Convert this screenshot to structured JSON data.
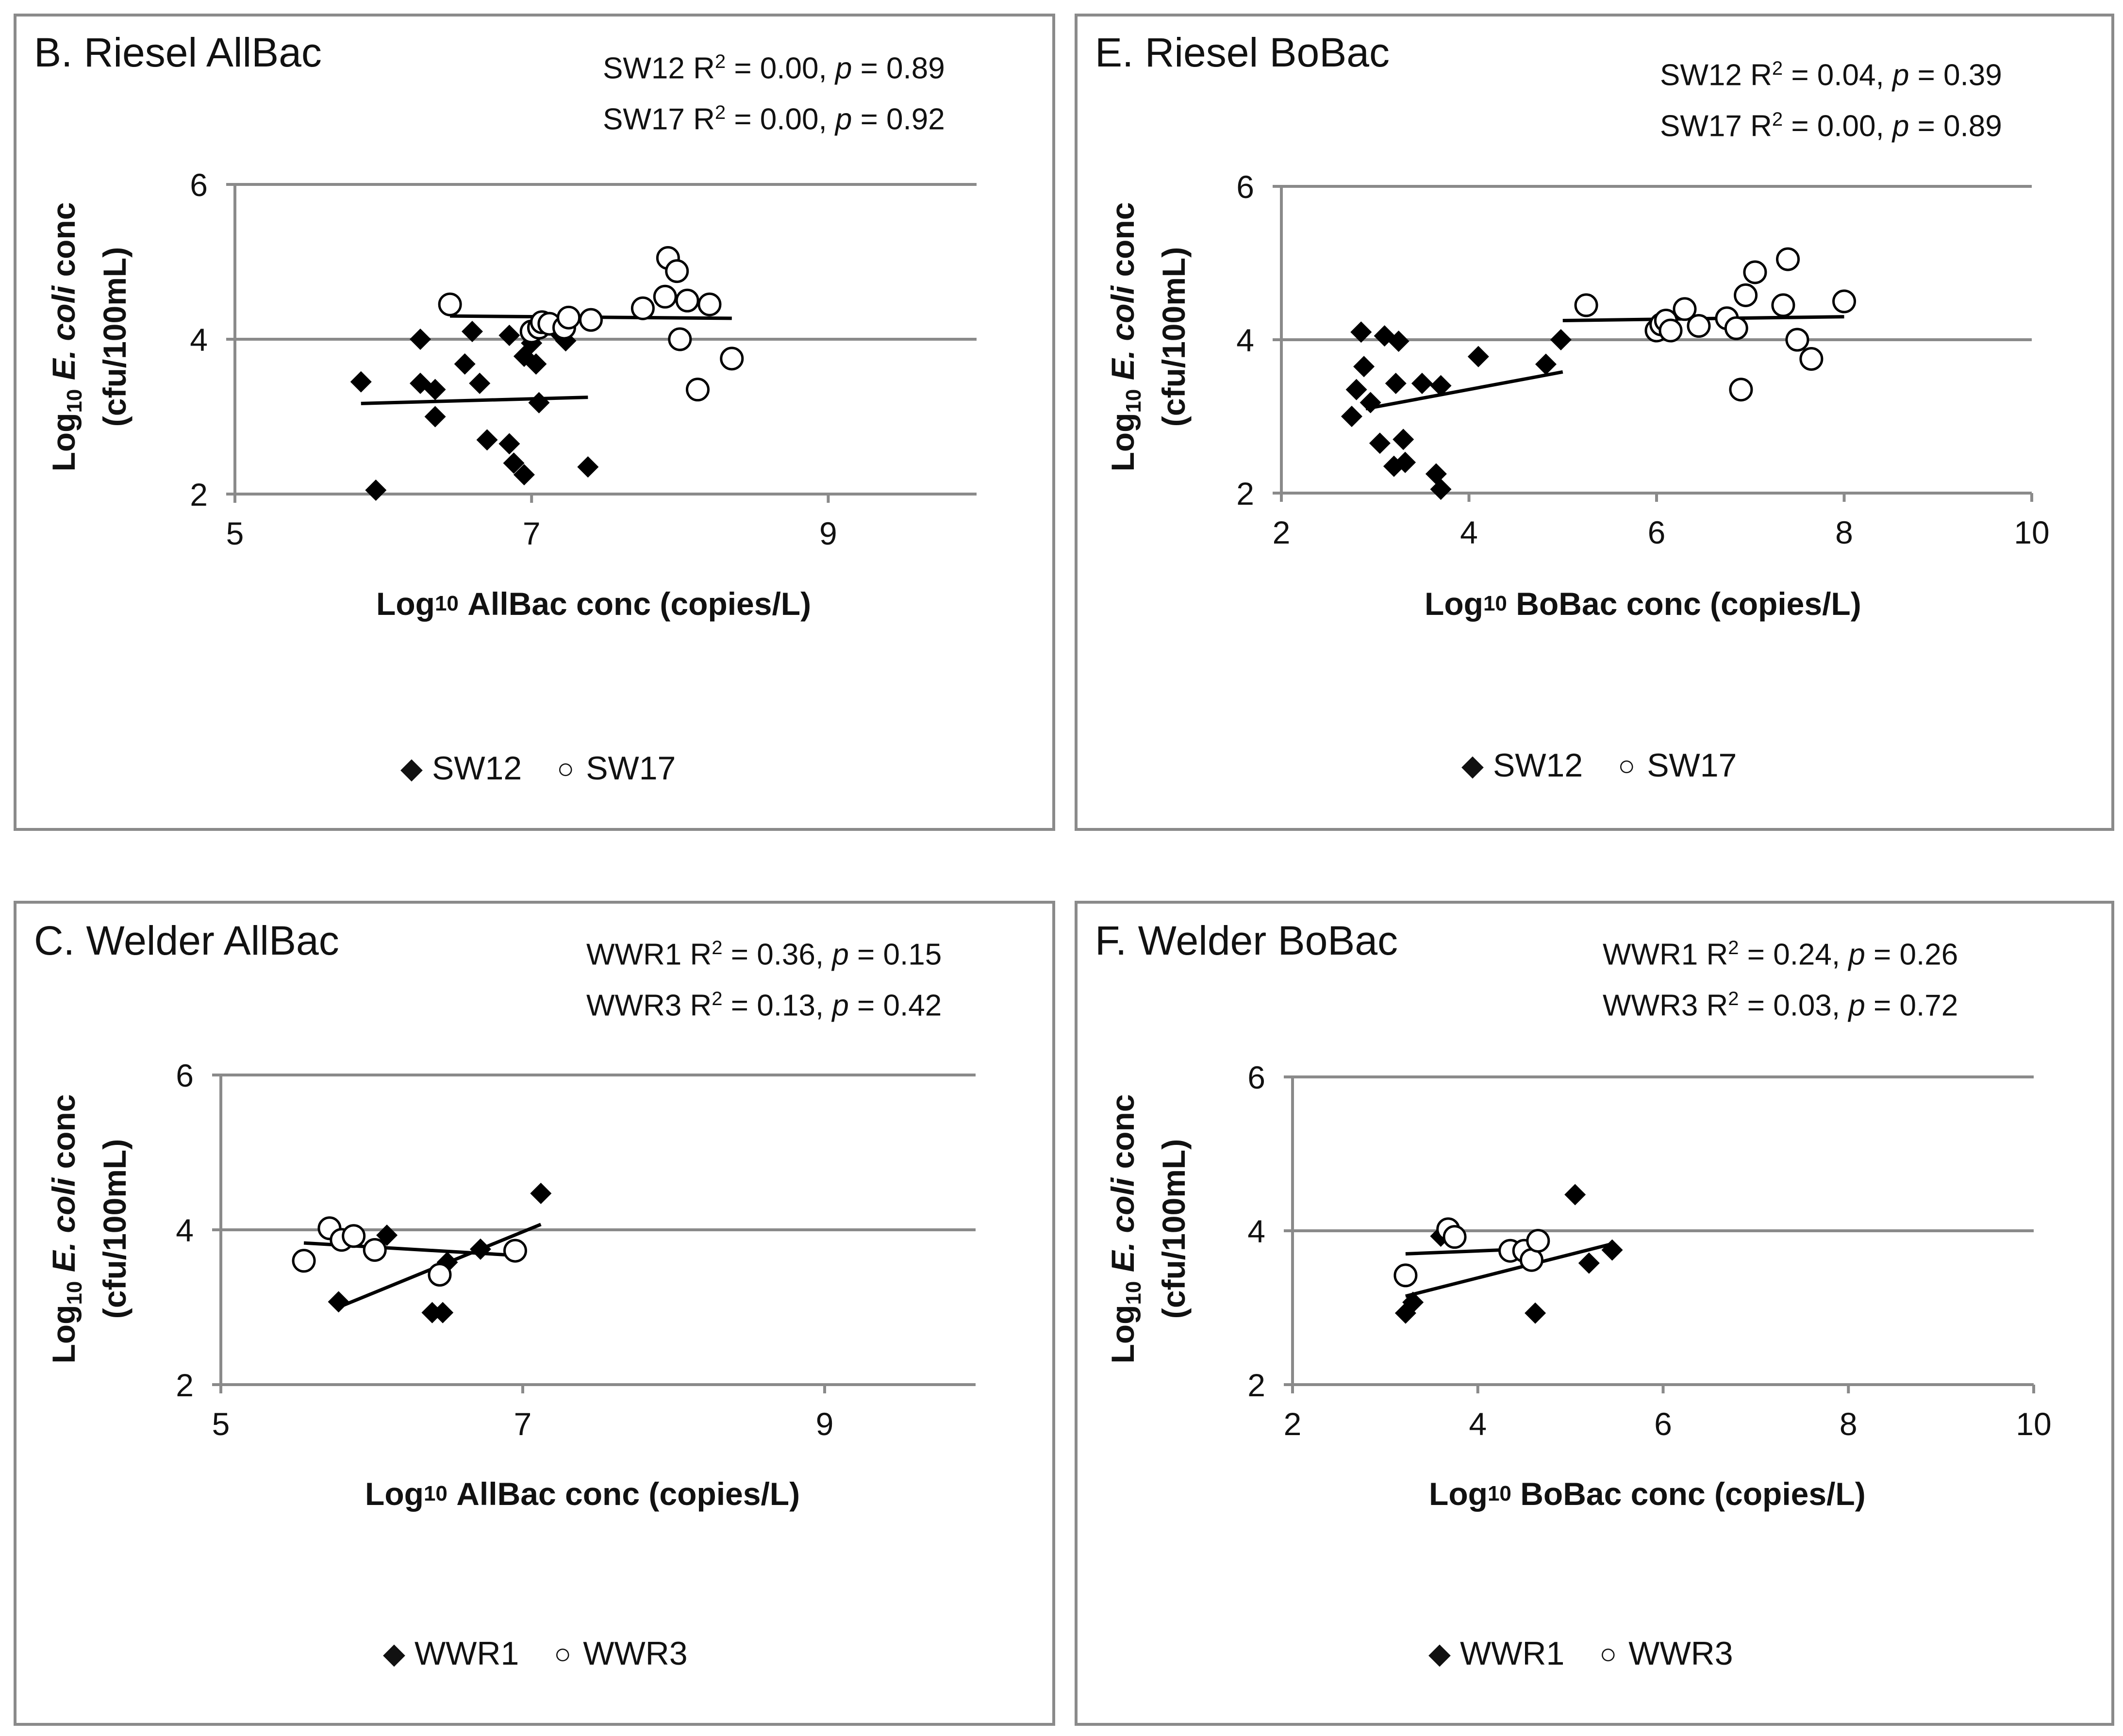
{
  "panels": [
    {
      "id": "B",
      "title": "B. Riesel AllBac",
      "stats": [
        {
          "series": "SW12",
          "r2": "0.00",
          "p": "0.89"
        },
        {
          "series": "SW17",
          "r2": "0.00",
          "p": "0.92"
        }
      ],
      "ylabel_line1_pre": "Log",
      "ylabel_line1_sub": "10",
      "ylabel_line1_it": "E. coli",
      "ylabel_line1_post": "conc",
      "ylabel_line2": "(cfu/100mL)",
      "xlabel_pre": "Log",
      "xlabel_sub": "10",
      "xlabel_post": "AllBac conc (copies/L)",
      "legend": [
        "SW12",
        "SW17"
      ]
    },
    {
      "id": "E",
      "title": "E. Riesel BoBac",
      "stats": [
        {
          "series": "SW12",
          "r2": "0.04",
          "p": "0.39"
        },
        {
          "series": "SW17",
          "r2": "0.00",
          "p": "0.89"
        }
      ],
      "ylabel_line1_pre": "Log",
      "ylabel_line1_sub": "10",
      "ylabel_line1_it": "E. coli",
      "ylabel_line1_post": "conc",
      "ylabel_line2": "(cfu/100mL)",
      "xlabel_pre": "Log",
      "xlabel_sub": "10",
      "xlabel_post": "BoBac conc (copies/L)",
      "legend": [
        "SW12",
        "SW17"
      ]
    },
    {
      "id": "C",
      "title": "C. Welder AllBac",
      "stats": [
        {
          "series": "WWR1",
          "r2": "0.36",
          "p": "0.15"
        },
        {
          "series": "WWR3",
          "r2": "0.13",
          "p": "0.42"
        }
      ],
      "ylabel_line1_pre": "Log",
      "ylabel_line1_sub": "10",
      "ylabel_line1_it": "E. coli",
      "ylabel_line1_post": "conc",
      "ylabel_line2": "(cfu/100mL)",
      "xlabel_pre": "Log",
      "xlabel_sub": "10",
      "xlabel_post": "AllBac conc (copies/L)",
      "legend": [
        "WWR1",
        "WWR3"
      ]
    },
    {
      "id": "F",
      "title": "F. Welder BoBac",
      "stats": [
        {
          "series": "WWR1",
          "r2": "0.24",
          "p": "0.26"
        },
        {
          "series": "WWR3",
          "r2": "0.03",
          "p": "0.72"
        }
      ],
      "ylabel_line1_pre": "Log",
      "ylabel_line1_sub": "10",
      "ylabel_line1_it": "E. coli",
      "ylabel_line1_post": "conc",
      "ylabel_line2": "(cfu/100mL)",
      "xlabel_pre": "Log",
      "xlabel_sub": "10",
      "xlabel_post": "BoBac conc (copies/L)",
      "legend": [
        "WWR1",
        "WWR3"
      ]
    }
  ],
  "chart_data": [
    {
      "type": "scatter",
      "title": "B. Riesel AllBac",
      "xlabel": "Log10 AllBac conc (copies/L)",
      "ylabel": "Log10 E. coli conc (cfu/100mL)",
      "xlim": [
        5,
        10
      ],
      "ylim": [
        2,
        6
      ],
      "xticks": [
        5,
        7,
        9
      ],
      "yticks": [
        2,
        4,
        6
      ],
      "gridlines_y": [
        4,
        6
      ],
      "series": [
        {
          "name": "SW12",
          "marker": "filled-diamond",
          "points": [
            [
              5.85,
              3.45
            ],
            [
              5.95,
              2.05
            ],
            [
              6.25,
              4.0
            ],
            [
              6.25,
              3.43
            ],
            [
              6.35,
              3.35
            ],
            [
              6.35,
              3.0
            ],
            [
              6.55,
              3.68
            ],
            [
              6.6,
              4.1
            ],
            [
              6.65,
              3.43
            ],
            [
              6.7,
              2.7
            ],
            [
              6.85,
              4.05
            ],
            [
              6.85,
              2.65
            ],
            [
              6.88,
              2.4
            ],
            [
              6.95,
              3.78
            ],
            [
              6.95,
              2.25
            ],
            [
              7.0,
              3.95
            ],
            [
              7.03,
              3.68
            ],
            [
              7.05,
              3.18
            ],
            [
              7.2,
              4.05
            ],
            [
              7.23,
              3.98
            ],
            [
              7.38,
              2.35
            ]
          ],
          "trend": [
            [
              5.85,
              3.17
            ],
            [
              7.38,
              3.25
            ]
          ]
        },
        {
          "name": "SW17",
          "marker": "open-circle",
          "points": [
            [
              6.45,
              4.45
            ],
            [
              7.0,
              4.1
            ],
            [
              7.05,
              4.15
            ],
            [
              7.07,
              4.22
            ],
            [
              7.12,
              4.2
            ],
            [
              7.22,
              4.15
            ],
            [
              7.25,
              4.28
            ],
            [
              7.4,
              4.25
            ],
            [
              7.75,
              4.4
            ],
            [
              7.9,
              4.55
            ],
            [
              7.92,
              5.05
            ],
            [
              7.98,
              4.88
            ],
            [
              8.0,
              4.0
            ],
            [
              8.05,
              4.5
            ],
            [
              8.12,
              3.35
            ],
            [
              8.2,
              4.45
            ],
            [
              8.35,
              3.75
            ]
          ],
          "trend": [
            [
              6.45,
              4.3
            ],
            [
              8.35,
              4.27
            ]
          ]
        }
      ]
    },
    {
      "type": "scatter",
      "title": "E. Riesel BoBac",
      "xlabel": "Log10 BoBac conc (copies/L)",
      "ylabel": "Log10 E. coli conc (cfu/100mL)",
      "xlim": [
        2,
        10
      ],
      "ylim": [
        2,
        6
      ],
      "xticks": [
        2,
        4,
        6,
        8,
        10
      ],
      "yticks": [
        2,
        4,
        6
      ],
      "gridlines_y": [
        4,
        6
      ],
      "series": [
        {
          "name": "SW12",
          "marker": "filled-diamond",
          "points": [
            [
              2.75,
              3.0
            ],
            [
              2.8,
              3.35
            ],
            [
              2.85,
              4.1
            ],
            [
              2.88,
              3.65
            ],
            [
              2.95,
              3.18
            ],
            [
              3.05,
              2.65
            ],
            [
              3.1,
              4.05
            ],
            [
              3.2,
              2.35
            ],
            [
              3.22,
              3.43
            ],
            [
              3.25,
              3.98
            ],
            [
              3.3,
              2.7
            ],
            [
              3.32,
              2.4
            ],
            [
              3.5,
              3.43
            ],
            [
              3.65,
              2.25
            ],
            [
              3.7,
              2.05
            ],
            [
              3.7,
              3.4
            ],
            [
              4.1,
              3.78
            ],
            [
              4.82,
              3.68
            ],
            [
              4.98,
              4.0
            ]
          ],
          "trend": [
            [
              2.9,
              3.1
            ],
            [
              5.0,
              3.58
            ]
          ]
        },
        {
          "name": "SW17",
          "marker": "open-circle",
          "points": [
            [
              5.25,
              4.45
            ],
            [
              6.0,
              4.12
            ],
            [
              6.05,
              4.2
            ],
            [
              6.1,
              4.25
            ],
            [
              6.15,
              4.12
            ],
            [
              6.3,
              4.4
            ],
            [
              6.45,
              4.18
            ],
            [
              6.75,
              4.28
            ],
            [
              6.85,
              4.15
            ],
            [
              6.9,
              3.35
            ],
            [
              6.95,
              4.58
            ],
            [
              7.05,
              4.88
            ],
            [
              7.35,
              4.45
            ],
            [
              7.4,
              5.05
            ],
            [
              7.5,
              4.0
            ],
            [
              7.65,
              3.75
            ],
            [
              8.0,
              4.5
            ]
          ],
          "trend": [
            [
              5.0,
              4.25
            ],
            [
              8.0,
              4.3
            ]
          ]
        }
      ]
    },
    {
      "type": "scatter",
      "title": "C. Welder AllBac",
      "xlabel": "Log10 AllBac conc (copies/L)",
      "ylabel": "Log10 E. coli conc (cfu/100mL)",
      "xlim": [
        5,
        10
      ],
      "ylim": [
        2,
        6
      ],
      "xticks": [
        5,
        7,
        9
      ],
      "yticks": [
        2,
        4,
        6
      ],
      "gridlines_y": [
        4,
        6
      ],
      "series": [
        {
          "name": "WWR1",
          "marker": "filled-diamond",
          "points": [
            [
              5.78,
              3.07
            ],
            [
              6.1,
              3.93
            ],
            [
              6.4,
              2.93
            ],
            [
              6.47,
              2.93
            ],
            [
              6.5,
              3.58
            ],
            [
              6.72,
              3.75
            ],
            [
              7.12,
              4.47
            ]
          ],
          "trend": [
            [
              5.78,
              3.0
            ],
            [
              7.12,
              4.07
            ]
          ]
        },
        {
          "name": "WWR3",
          "marker": "open-circle",
          "points": [
            [
              5.55,
              3.6
            ],
            [
              5.72,
              4.02
            ],
            [
              5.8,
              3.87
            ],
            [
              5.88,
              3.92
            ],
            [
              6.02,
              3.74
            ],
            [
              6.45,
              3.42
            ],
            [
              6.95,
              3.73
            ]
          ],
          "trend": [
            [
              5.55,
              3.83
            ],
            [
              6.95,
              3.67
            ]
          ]
        }
      ]
    },
    {
      "type": "scatter",
      "title": "F. Welder BoBac",
      "xlabel": "Log10 BoBac conc (copies/L)",
      "ylabel": "Log10 E. coli conc (cfu/100mL)",
      "xlim": [
        2,
        10
      ],
      "ylim": [
        2,
        6
      ],
      "xticks": [
        2,
        4,
        6,
        8,
        10
      ],
      "yticks": [
        2,
        4,
        6
      ],
      "gridlines_y": [
        4,
        6
      ],
      "series": [
        {
          "name": "WWR1",
          "marker": "filled-diamond",
          "points": [
            [
              3.22,
              2.93
            ],
            [
              3.3,
              3.07
            ],
            [
              3.6,
              3.93
            ],
            [
              4.62,
              2.93
            ],
            [
              5.05,
              4.47
            ],
            [
              5.2,
              3.58
            ],
            [
              5.45,
              3.75
            ]
          ],
          "trend": [
            [
              3.22,
              3.15
            ],
            [
              5.45,
              3.83
            ]
          ]
        },
        {
          "name": "WWR3",
          "marker": "open-circle",
          "points": [
            [
              3.22,
              3.42
            ],
            [
              3.68,
              4.02
            ],
            [
              3.75,
              3.92
            ],
            [
              4.35,
              3.74
            ],
            [
              4.5,
              3.74
            ],
            [
              4.58,
              3.62
            ],
            [
              4.65,
              3.87
            ]
          ],
          "trend": [
            [
              3.22,
              3.7
            ],
            [
              4.65,
              3.77
            ]
          ]
        }
      ]
    }
  ]
}
